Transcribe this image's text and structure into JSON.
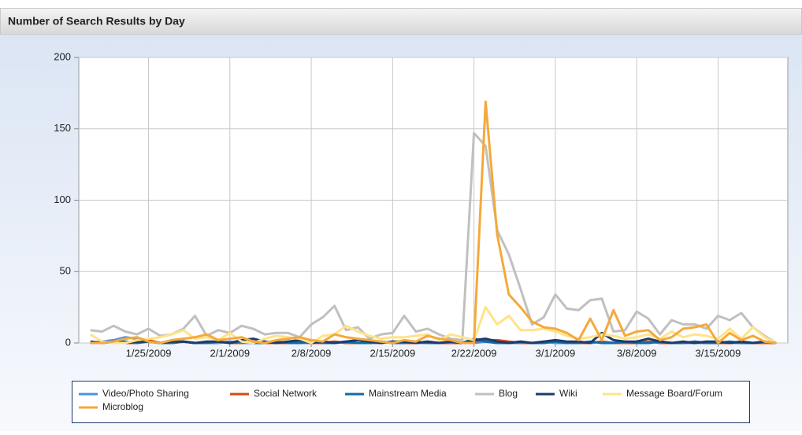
{
  "chart_data": {
    "type": "line",
    "title": "Number of Search Results by Day",
    "x": [
      "1/20/2009",
      "1/21/2009",
      "1/22/2009",
      "1/23/2009",
      "1/24/2009",
      "1/25/2009",
      "1/26/2009",
      "1/27/2009",
      "1/28/2009",
      "1/29/2009",
      "1/30/2009",
      "1/31/2009",
      "2/1/2009",
      "2/2/2009",
      "2/3/2009",
      "2/4/2009",
      "2/5/2009",
      "2/6/2009",
      "2/7/2009",
      "2/8/2009",
      "2/9/2009",
      "2/10/2009",
      "2/11/2009",
      "2/12/2009",
      "2/13/2009",
      "2/14/2009",
      "2/15/2009",
      "2/16/2009",
      "2/17/2009",
      "2/18/2009",
      "2/19/2009",
      "2/20/2009",
      "2/21/2009",
      "2/22/2009",
      "2/23/2009",
      "2/24/2009",
      "2/25/2009",
      "2/26/2009",
      "2/27/2009",
      "2/28/2009",
      "3/1/2009",
      "3/2/2009",
      "3/3/2009",
      "3/4/2009",
      "3/5/2009",
      "3/6/2009",
      "3/7/2009",
      "3/8/2009",
      "3/9/2009",
      "3/10/2009",
      "3/11/2009",
      "3/12/2009",
      "3/13/2009",
      "3/14/2009",
      "3/15/2009",
      "3/16/2009",
      "3/17/2009",
      "3/18/2009",
      "3/19/2009",
      "3/20/2009"
    ],
    "xlim": [
      "1/19/2009",
      "3/21/2009"
    ],
    "xticks": [
      "1/25/2009",
      "2/1/2009",
      "2/8/2009",
      "2/15/2009",
      "2/22/2009",
      "3/1/2009",
      "3/8/2009",
      "3/15/2009"
    ],
    "ylim": [
      0,
      200
    ],
    "yticks": [
      0,
      50,
      100,
      150,
      200
    ],
    "grid": true,
    "series": [
      {
        "name": "Video/Photo Sharing",
        "color": "#4a90e2",
        "values": [
          0,
          1,
          2,
          4,
          3,
          1,
          0,
          0,
          1,
          0,
          0,
          0,
          1,
          0,
          0,
          0,
          1,
          0,
          0,
          0,
          0,
          1,
          0,
          0,
          0,
          0,
          1,
          0,
          0,
          0,
          0,
          1,
          0,
          0,
          1,
          0,
          0,
          0,
          0,
          1,
          0,
          0,
          0,
          0,
          1,
          0,
          0,
          0,
          0,
          1,
          0,
          0,
          0,
          0,
          1,
          0,
          0,
          0,
          0,
          0
        ]
      },
      {
        "name": "Social Network",
        "color": "#d9480f",
        "values": [
          0,
          0,
          1,
          0,
          0,
          2,
          0,
          0,
          1,
          0,
          0,
          1,
          0,
          0,
          1,
          0,
          0,
          0,
          1,
          0,
          0,
          1,
          0,
          0,
          0,
          1,
          0,
          0,
          0,
          1,
          0,
          0,
          0,
          1,
          2,
          2,
          1,
          0,
          0,
          0,
          1,
          0,
          0,
          0,
          1,
          0,
          0,
          0,
          1,
          0,
          0,
          0,
          1,
          0,
          0,
          0,
          1,
          0,
          0,
          0
        ]
      },
      {
        "name": "Mainstream Media",
        "color": "#0e6ba8",
        "values": [
          0,
          0,
          1,
          1,
          0,
          1,
          0,
          0,
          1,
          0,
          0,
          1,
          0,
          1,
          0,
          0,
          1,
          0,
          0,
          1,
          0,
          0,
          1,
          0,
          0,
          1,
          0,
          0,
          1,
          0,
          0,
          1,
          0,
          3,
          1,
          0,
          0,
          1,
          0,
          0,
          1,
          0,
          0,
          1,
          0,
          0,
          1,
          0,
          0,
          1,
          0,
          0,
          1,
          0,
          0,
          1,
          0,
          0,
          1,
          0
        ]
      },
      {
        "name": "Blog",
        "color": "#c0c0c0",
        "values": [
          9,
          8,
          12,
          8,
          6,
          10,
          5,
          6,
          10,
          19,
          5,
          9,
          7,
          12,
          10,
          6,
          7,
          7,
          4,
          13,
          18,
          26,
          9,
          11,
          3,
          6,
          7,
          19,
          8,
          10,
          6,
          3,
          2,
          147,
          138,
          79,
          62,
          38,
          13,
          18,
          34,
          24,
          23,
          30,
          31,
          8,
          9,
          22,
          17,
          6,
          16,
          13,
          13,
          10,
          19,
          16,
          21,
          11,
          5,
          0
        ]
      },
      {
        "name": "Wiki",
        "color": "#1c3a6b",
        "values": [
          1,
          0,
          1,
          0,
          1,
          1,
          0,
          1,
          1,
          0,
          1,
          1,
          0,
          2,
          3,
          1,
          0,
          1,
          2,
          0,
          1,
          0,
          1,
          2,
          1,
          0,
          1,
          1,
          0,
          1,
          0,
          1,
          0,
          2,
          3,
          1,
          0,
          1,
          0,
          1,
          2,
          1,
          1,
          0,
          7,
          2,
          1,
          1,
          3,
          1,
          0,
          1,
          0,
          1,
          1,
          0,
          1,
          0,
          1,
          0
        ]
      },
      {
        "name": "Message Board/Forum",
        "color": "#ffe38a",
        "values": [
          6,
          1,
          0,
          0,
          2,
          3,
          4,
          6,
          9,
          3,
          4,
          2,
          7,
          1,
          0,
          3,
          5,
          4,
          3,
          0,
          5,
          6,
          12,
          8,
          5,
          3,
          4,
          4,
          5,
          6,
          2,
          6,
          4,
          2,
          25,
          13,
          19,
          9,
          9,
          10,
          8,
          5,
          3,
          4,
          6,
          5,
          3,
          4,
          6,
          3,
          8,
          4,
          6,
          5,
          3,
          10,
          3,
          11,
          4,
          0
        ]
      },
      {
        "name": "Microblog",
        "color": "#f5a93a",
        "values": [
          0,
          0,
          1,
          3,
          4,
          1,
          0,
          2,
          3,
          4,
          6,
          2,
          3,
          4,
          1,
          0,
          2,
          3,
          4,
          2,
          1,
          6,
          4,
          3,
          2,
          1,
          0,
          2,
          1,
          5,
          3,
          2,
          0,
          0,
          169,
          76,
          34,
          25,
          15,
          11,
          10,
          7,
          2,
          17,
          2,
          23,
          5,
          8,
          9,
          2,
          4,
          10,
          11,
          13,
          0,
          7,
          2,
          5,
          1,
          0
        ]
      }
    ]
  }
}
